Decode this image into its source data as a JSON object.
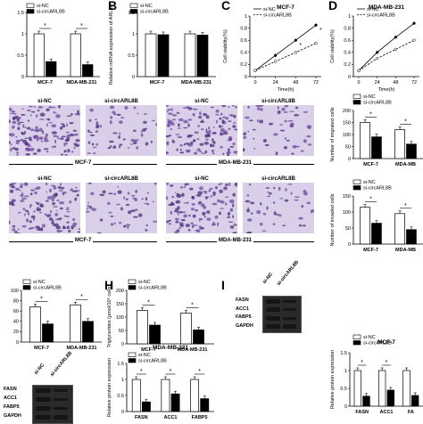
{
  "panels": {
    "B": "B",
    "C": "C",
    "D": "D",
    "H": "H",
    "I": "I"
  },
  "legend": {
    "a": "si-NC",
    "b": "si-circARL8B"
  },
  "chart_data": [
    {
      "id": "panelA",
      "type": "bar",
      "title": "",
      "xlabel": "",
      "ylabel": "",
      "categories": [
        "MCF-7",
        "MDA-MB-231"
      ],
      "ylim": [
        0,
        1.5
      ],
      "yticks": [
        0,
        0.5,
        1.0,
        1.5
      ],
      "series": [
        {
          "name": "si-NC",
          "values": [
            1.0,
            1.0
          ]
        },
        {
          "name": "si-circARL8B",
          "values": [
            0.35,
            0.28
          ]
        }
      ],
      "annotations": [
        "*",
        "*"
      ]
    },
    {
      "id": "panelB",
      "type": "bar",
      "title": "",
      "xlabel": "",
      "ylabel": "Relative mRNA expression of ARL8B",
      "categories": [
        "MCF-7",
        "MDA-MB-231"
      ],
      "ylim": [
        0,
        1.5
      ],
      "yticks": [
        0.0,
        0.5,
        1.0,
        1.5
      ],
      "series": [
        {
          "name": "si-NC",
          "values": [
            1.0,
            1.0
          ]
        },
        {
          "name": "si-circARL8B",
          "values": [
            0.98,
            0.97
          ]
        }
      ]
    },
    {
      "id": "panelC",
      "type": "line",
      "title": "MCF-7",
      "xlabel": "Time(h)",
      "ylabel": "Cell viability(%)",
      "x": [
        0,
        24,
        48,
        72
      ],
      "ylim": [
        0,
        1.0
      ],
      "yticks": [
        0.0,
        0.2,
        0.4,
        0.6,
        0.8,
        1.0
      ],
      "series": [
        {
          "name": "si-NC",
          "values": [
            0.1,
            0.35,
            0.6,
            0.85
          ]
        },
        {
          "name": "si-circARL8B",
          "values": [
            0.1,
            0.25,
            0.4,
            0.55
          ]
        }
      ],
      "annotations": [
        "*",
        "*"
      ]
    },
    {
      "id": "panelD",
      "type": "line",
      "title": "MDA-MB-231",
      "xlabel": "Time(h)",
      "ylabel": "Cell viability(%)",
      "x": [
        0,
        24,
        48,
        72
      ],
      "ylim": [
        0,
        1.0
      ],
      "yticks": [
        0.0,
        0.2,
        0.4,
        0.6,
        0.8,
        1.0
      ],
      "series": [
        {
          "name": "si-NC",
          "values": [
            0.1,
            0.4,
            0.65,
            0.88
          ]
        },
        {
          "name": "si-circARL8B",
          "values": [
            0.1,
            0.3,
            0.45,
            0.6
          ]
        }
      ]
    },
    {
      "id": "panelE",
      "type": "bar",
      "title": "",
      "xlabel": "",
      "ylabel": "Number of migrated cells",
      "categories": [
        "MCF-7",
        "MDA-MB"
      ],
      "ylim": [
        0,
        200
      ],
      "yticks": [
        0,
        50,
        100,
        150,
        200
      ],
      "series": [
        {
          "name": "si-NC",
          "values": [
            150,
            120
          ]
        },
        {
          "name": "si-circARL8B",
          "values": [
            90,
            60
          ]
        }
      ],
      "annotations": [
        "*",
        "*"
      ]
    },
    {
      "id": "panelF",
      "type": "bar",
      "title": "",
      "xlabel": "",
      "ylabel": "Number of invaded cells",
      "categories": [
        "MCF-7",
        "MDA-MB"
      ],
      "ylim": [
        0,
        150
      ],
      "yticks": [
        0,
        50,
        100,
        150
      ],
      "series": [
        {
          "name": "si-NC",
          "values": [
            115,
            95
          ]
        },
        {
          "name": "si-circARL8B",
          "values": [
            65,
            45
          ]
        }
      ],
      "annotations": [
        "*",
        "*"
      ]
    },
    {
      "id": "panelG",
      "type": "bar",
      "title": "",
      "xlabel": "",
      "ylabel": "",
      "categories": [
        "MCF-7",
        "MDA-MB-231"
      ],
      "ylim": [
        0,
        100
      ],
      "yticks": [
        0,
        20,
        40,
        60,
        80,
        100
      ],
      "series": [
        {
          "name": "si-NC",
          "values": [
            68,
            72
          ]
        },
        {
          "name": "si-circARL8B",
          "values": [
            35,
            40
          ]
        }
      ],
      "annotations": [
        "*",
        "*"
      ]
    },
    {
      "id": "panelH",
      "type": "bar",
      "title": "",
      "xlabel": "",
      "ylabel": "Triglycerides (μmol/10⁶ cells",
      "categories": [
        "MCF-7",
        "MDA-MB-231"
      ],
      "ylim": [
        0,
        200
      ],
      "yticks": [
        0,
        50,
        100,
        150,
        200
      ],
      "series": [
        {
          "name": "si-NC",
          "values": [
            125,
            115
          ]
        },
        {
          "name": "si-circARL8B",
          "values": [
            70,
            52
          ]
        }
      ],
      "annotations": [
        "*",
        "*"
      ]
    },
    {
      "id": "panelJ",
      "type": "bar",
      "title": "MCF-7",
      "xlabel": "",
      "ylabel": "Relative protein expression",
      "categories": [
        "FASN",
        "ACC1",
        "FA"
      ],
      "ylim": [
        0,
        1.5
      ],
      "yticks": [
        0.0,
        0.5,
        1.0,
        1.5
      ],
      "series": [
        {
          "name": "si-NC",
          "values": [
            1.0,
            1.0,
            1.0
          ]
        },
        {
          "name": "si-circARL8B",
          "values": [
            0.28,
            0.45,
            0.3
          ]
        }
      ],
      "annotations": [
        "*",
        "*",
        ""
      ]
    },
    {
      "id": "panelK",
      "type": "bar",
      "title": "MDA-MB-231",
      "xlabel": "",
      "ylabel": "Relative protein expression",
      "categories": [
        "FASN",
        "ACC1",
        "FABP5"
      ],
      "ylim": [
        0,
        1.5
      ],
      "yticks": [
        0.0,
        0.5,
        1.0,
        1.5
      ],
      "series": [
        {
          "name": "si-NC",
          "values": [
            1.0,
            1.0,
            1.0
          ]
        },
        {
          "name": "si-circARL8B",
          "values": [
            0.3,
            0.55,
            0.4
          ]
        }
      ],
      "annotations": [
        "*",
        "*",
        "*"
      ]
    }
  ],
  "images": {
    "migration_labels": [
      "si-NC",
      "si-circARL8B",
      "si-NC",
      "si-circARL8B"
    ],
    "invasion_labels": [
      "si-NC",
      "si-circARL8B",
      "si-NC",
      "si-circARL8B"
    ],
    "migration_groups": [
      "MCF-7",
      "MDA-MB-231"
    ],
    "invasion_groups": [
      "MCF-7",
      "MDA-MB-231"
    ]
  },
  "blots": {
    "panelI": {
      "columns": [
        "si-NC",
        "si-circARL8B"
      ],
      "rows": [
        "FASN",
        "ACC1",
        "FABP5",
        "GAPDH"
      ]
    },
    "panelG_blot": {
      "columns": [
        "si-NC",
        "si-circARL8B"
      ],
      "rows": [
        "FASN",
        "ACC1",
        "FABP5",
        "GAPDH"
      ]
    }
  },
  "colors": {
    "nc": "#ffffff",
    "si": "#000000",
    "micro_bg": "#d8cde8",
    "micro_fg": "#4b2a7a"
  }
}
